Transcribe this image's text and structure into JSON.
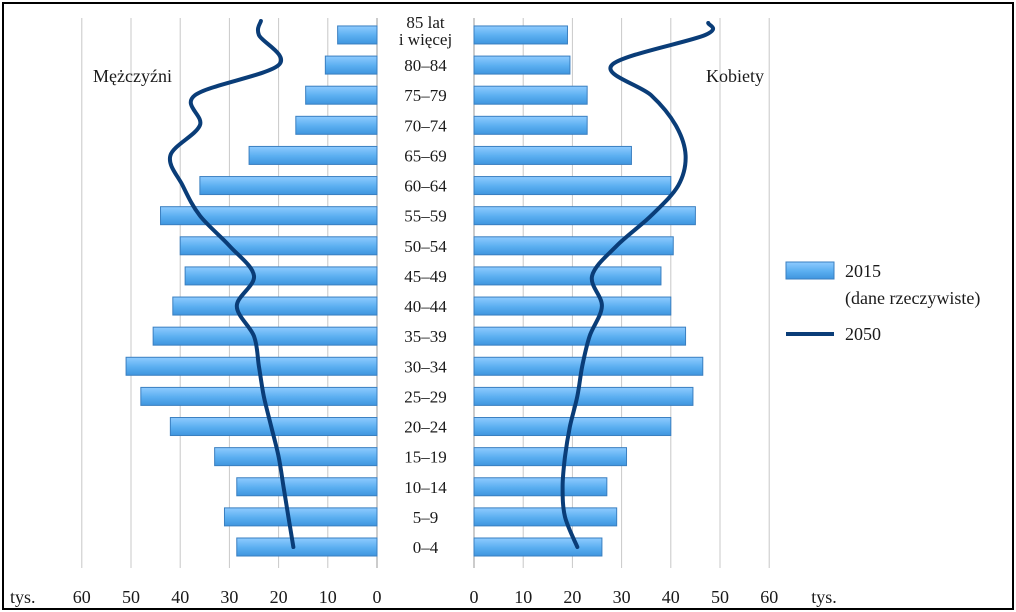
{
  "chart_data": {
    "type": "bar",
    "orientation": "horizontal",
    "layout": "population-pyramid",
    "categories": [
      "0–4",
      "5–9",
      "10–14",
      "15–19",
      "20–24",
      "25–29",
      "30–34",
      "35–39",
      "40–44",
      "45–49",
      "50–54",
      "55–59",
      "60–64",
      "65–69",
      "70–74",
      "75–79",
      "80–84",
      "85 lat i więcej"
    ],
    "category_display": [
      [
        "0–4"
      ],
      [
        "5–9"
      ],
      [
        "10–14"
      ],
      [
        "15–19"
      ],
      [
        "20–24"
      ],
      [
        "25–29"
      ],
      [
        "30–34"
      ],
      [
        "35–39"
      ],
      [
        "40–44"
      ],
      [
        "45–49"
      ],
      [
        "50–54"
      ],
      [
        "55–59"
      ],
      [
        "60–64"
      ],
      [
        "65–69"
      ],
      [
        "70–74"
      ],
      [
        "75–79"
      ],
      [
        "80–84"
      ],
      [
        "85 lat",
        "i więcej"
      ]
    ],
    "groups": {
      "left": "Mężczyźni",
      "right": "Kobiety"
    },
    "series": [
      {
        "name": "2015 (dane rzeczywiste)",
        "legend_lines": [
          "2015",
          "(dane rzeczywiste)"
        ],
        "kind": "bar",
        "color": "#5aaef0",
        "edge_color": "#3a7fc0",
        "male": [
          28.5,
          31,
          28.5,
          33,
          42,
          48,
          51,
          45.5,
          41.5,
          39,
          40,
          44,
          36,
          26,
          16.5,
          14.5,
          10.5,
          8
        ],
        "female": [
          26,
          29,
          27,
          31,
          40,
          44.5,
          46.5,
          43,
          40,
          38,
          40.5,
          45,
          40,
          32,
          23,
          23,
          19.5,
          19
        ]
      },
      {
        "name": "2050",
        "legend_lines": [
          "2050"
        ],
        "kind": "line",
        "color": "#0a3d78",
        "male": [
          17,
          18,
          19,
          20,
          21.5,
          23,
          24,
          25,
          28.5,
          25,
          30,
          36,
          39.5,
          42,
          36,
          37,
          20,
          24
        ],
        "female": [
          21,
          18.5,
          18,
          18.5,
          19.5,
          21,
          22,
          23.5,
          26,
          24,
          29,
          36,
          41.5,
          43,
          41,
          36,
          28,
          47
        ]
      }
    ],
    "x_ticks": [
      0,
      10,
      20,
      30,
      40,
      50,
      60
    ],
    "x_unit": "tys.",
    "xlim": [
      0,
      60
    ],
    "grid": "vertical",
    "legend_position": "right"
  }
}
